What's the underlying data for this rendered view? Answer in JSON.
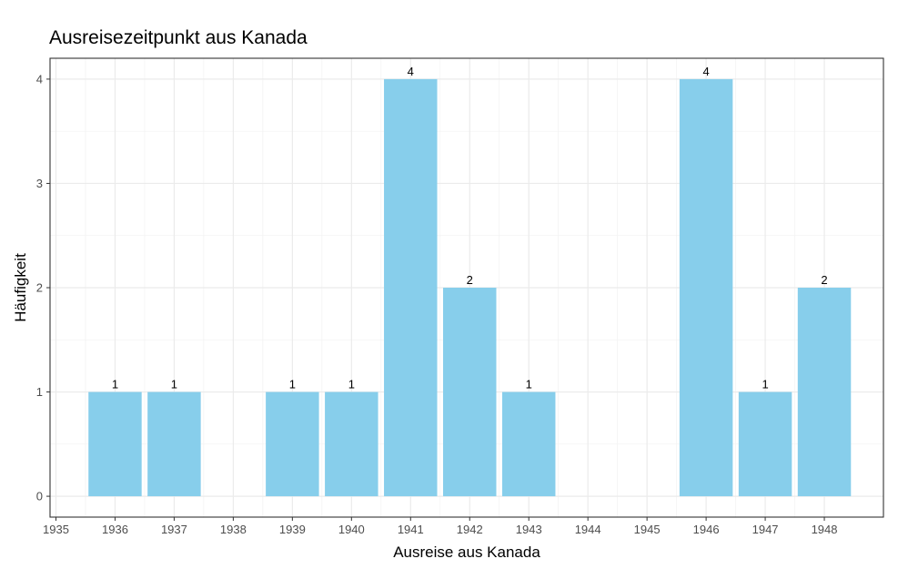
{
  "chart_data": {
    "type": "bar",
    "title": "Ausreisezeitpunkt aus Kanada",
    "xlabel": "Ausreise aus Kanada",
    "ylabel": "Häufigkeit",
    "x_ticks": [
      1935,
      1936,
      1937,
      1938,
      1939,
      1940,
      1941,
      1942,
      1943,
      1944,
      1945,
      1946,
      1947,
      1948
    ],
    "xlim": [
      1934.9,
      1949.0
    ],
    "y_ticks": [
      0,
      1,
      2,
      3,
      4
    ],
    "ylim": [
      -0.2,
      4.2
    ],
    "categories": [
      1936,
      1937,
      1939,
      1940,
      1941,
      1942,
      1943,
      1946,
      1947,
      1948
    ],
    "values": [
      1,
      1,
      1,
      1,
      4,
      2,
      1,
      4,
      1,
      2
    ],
    "grid": true,
    "bar_color": "#87CEEB"
  }
}
